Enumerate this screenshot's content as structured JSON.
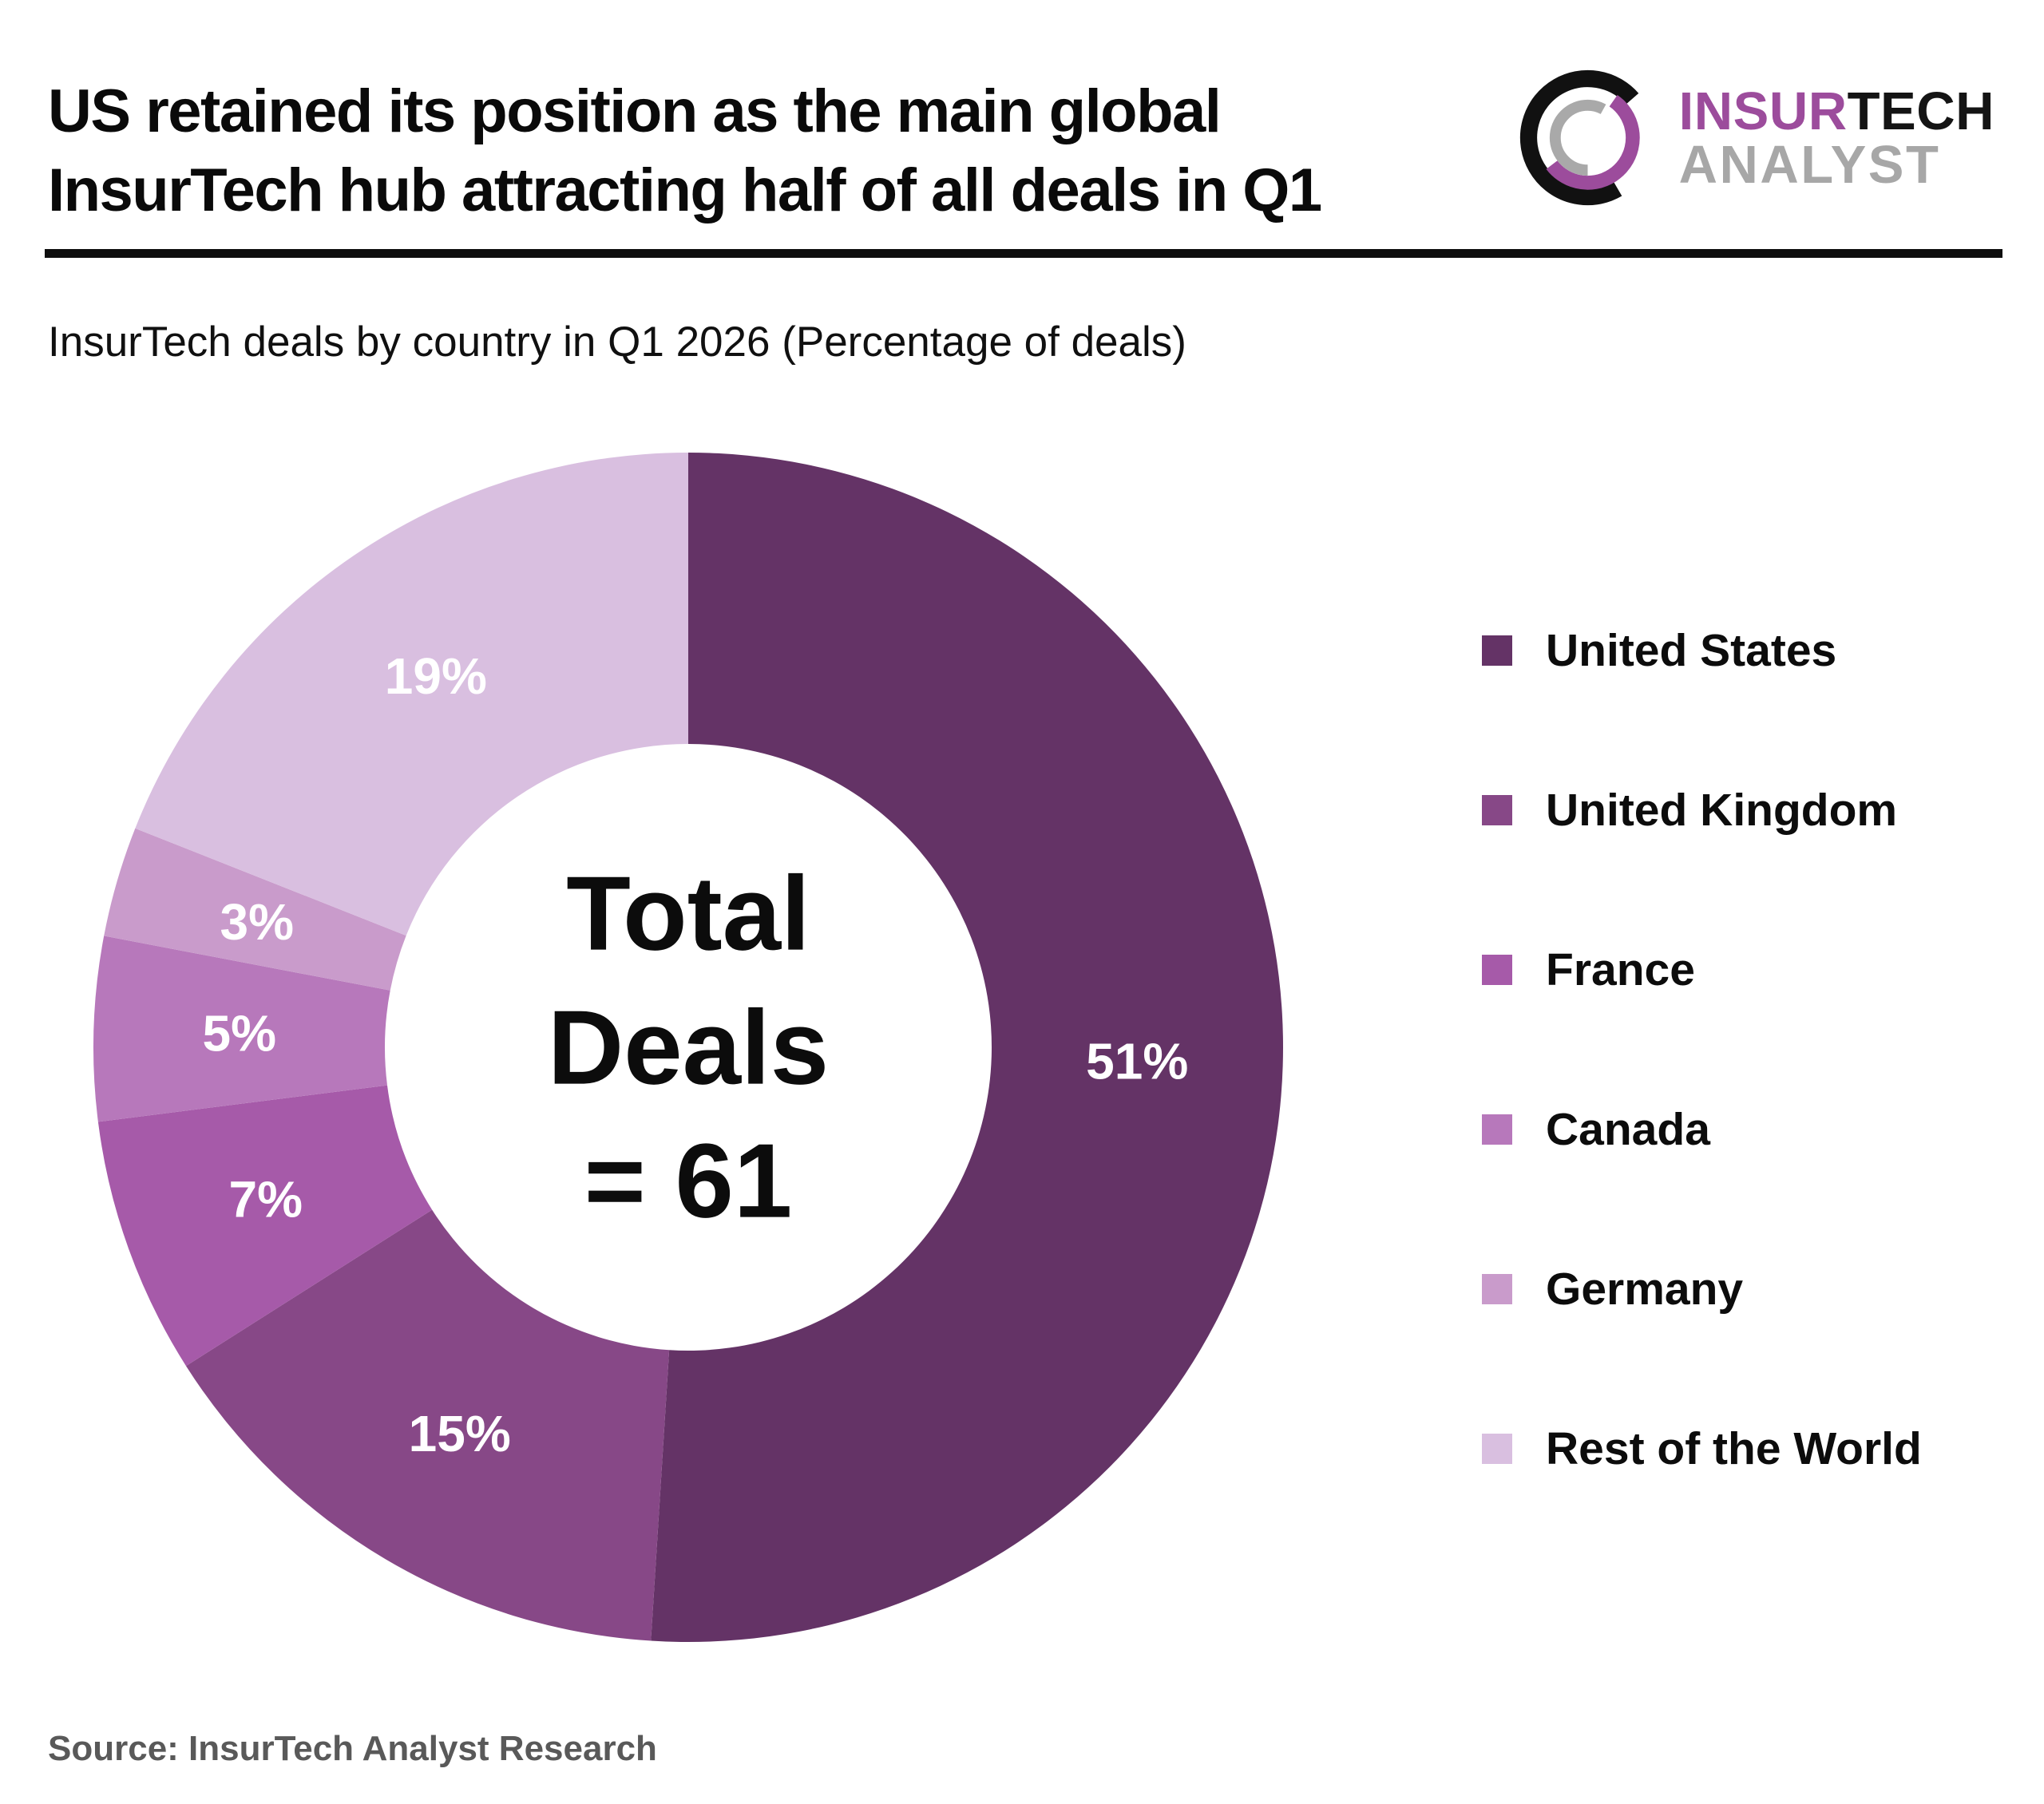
{
  "header": {
    "title_line1": "US retained its position as the main global",
    "title_line2": "InsurTech hub attracting half of all deals in Q1",
    "logo": {
      "insur": "INSUR",
      "tech": "TECH",
      "analyst": "ANALYST"
    }
  },
  "subtitle": "InsurTech deals by country in Q1 2026 (Percentage of deals)",
  "chart_data": {
    "type": "pie",
    "subtype": "donut",
    "title": "InsurTech deals by country in Q1 2026 (Percentage of deals)",
    "total_deals": 61,
    "center_label": {
      "line1": "Total",
      "line2": "Deals",
      "line3": "= 61"
    },
    "unit": "%",
    "start_angle_deg": 0,
    "direction": "clockwise",
    "donut_hole_ratio": 0.51,
    "legend_position": "right",
    "series": [
      {
        "label": "United States",
        "value": 51,
        "value_label": "51%",
        "color": "#643366"
      },
      {
        "label": "United Kingdom",
        "value": 15,
        "value_label": "15%",
        "color": "#874887"
      },
      {
        "label": "France",
        "value": 7,
        "value_label": "7%",
        "color": "#a65aa9"
      },
      {
        "label": "Canada",
        "value": 5,
        "value_label": "5%",
        "color": "#b778bb"
      },
      {
        "label": "Germany",
        "value": 3,
        "value_label": "3%",
        "color": "#c99bcb"
      },
      {
        "label": "Rest of the World",
        "value": 19,
        "value_label": "19%",
        "color": "#d9bfe0"
      }
    ],
    "value_label_color": "#ffffff"
  },
  "source": "Source: InsurTech Analyst Research",
  "colors": {
    "accent_purple": "#9c4c9c",
    "logo_gray": "#a7a7a7",
    "title_text": "#0a0a0a",
    "divider": "#0e0e0e",
    "source_text": "#595959"
  }
}
